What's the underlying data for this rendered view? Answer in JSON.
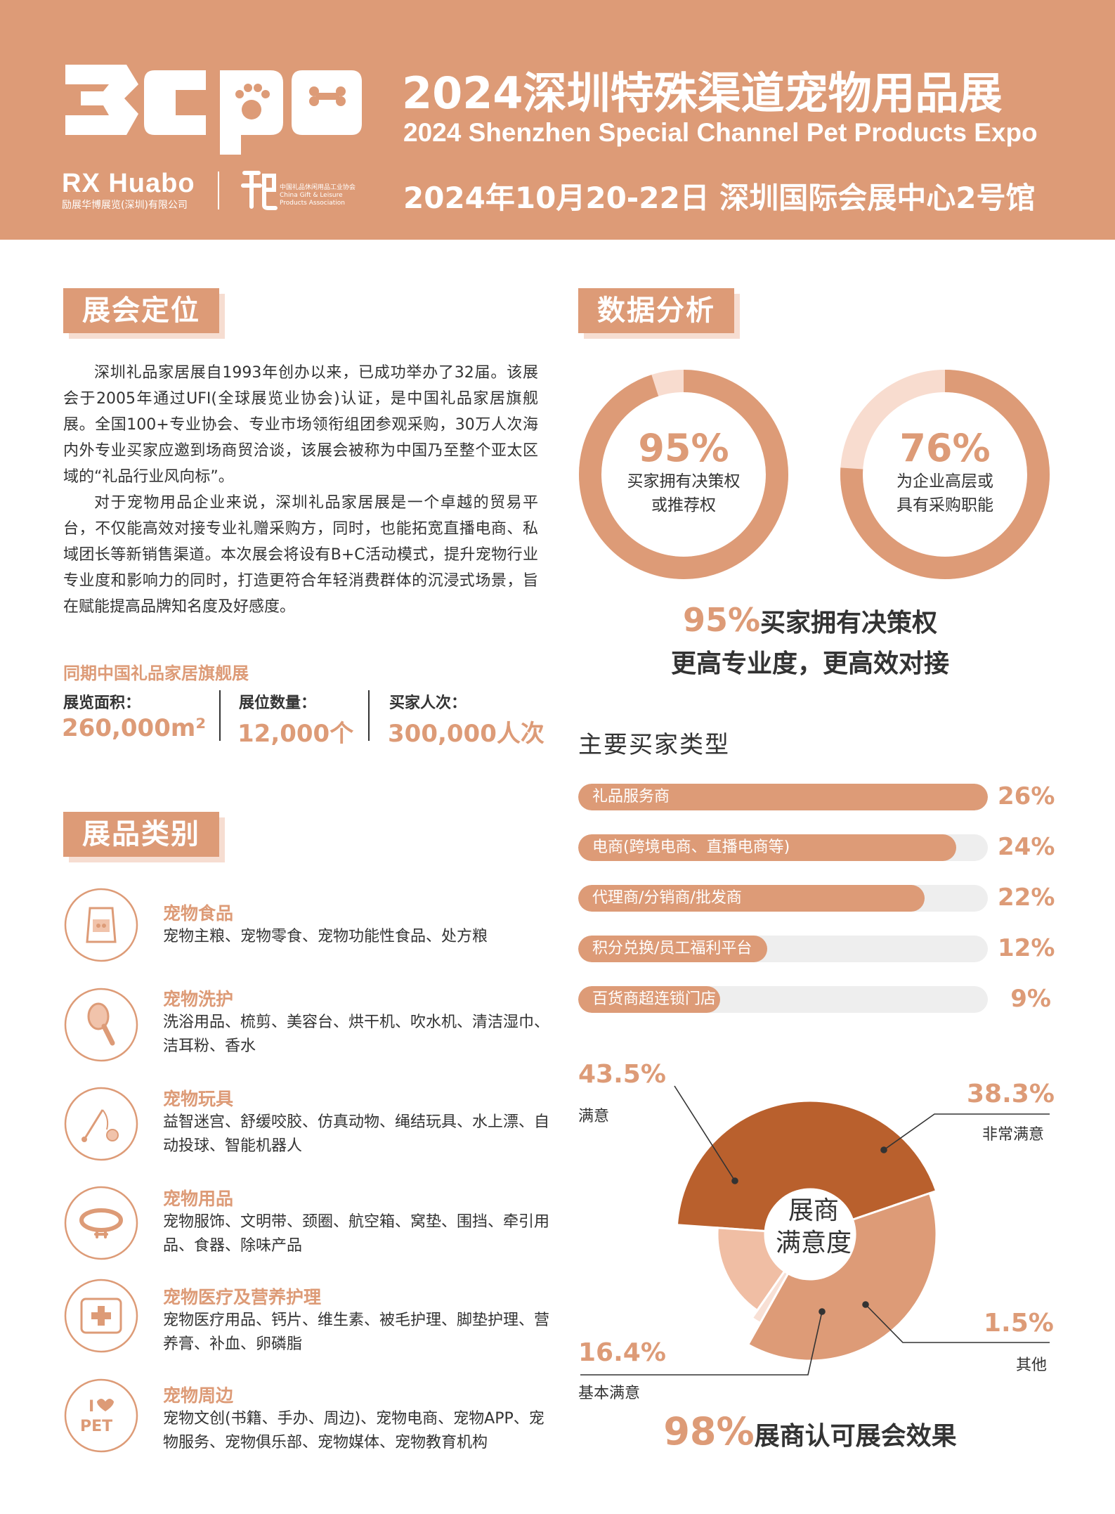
{
  "header": {
    "title": "2024深圳特殊渠道宠物用品展",
    "subtitle_en": "2024 Shenzhen Special Channel Pet Products Expo",
    "date_venue": "2024年10月20-22日 深圳国际会展中心2号馆",
    "organizer": "RX Huabo",
    "organizer_sub": "励展华博展览(深圳)有限公司",
    "association": "中国礼品休闲用品工业协会 China Gift & Leisure Products Association"
  },
  "positioning": {
    "section_title": "展会定位",
    "paragraph_1": "深圳礼品家居展自1993年创办以来，已成功举办了32届。该展会于2005年通过UFI(全球展览业协会)认证，是中国礼品家居旗舰展。全国100+专业协会、专业市场领衔组团参观采购，30万人次海内外专业买家应邀到场商贸洽谈，该展会被称为中国乃至整个亚太区域的“礼品行业风向标”。",
    "paragraph_2": "对于宠物用品企业来说，深圳礼品家居展是一个卓越的贸易平台，不仅能高效对接专业礼赠采购方，同时，也能拓宽直播电商、私域团长等新销售渠道。本次展会将设有B+C活动模式，提升宠物行业专业度和影响力的同时，打造更符合年轻消费群体的沉浸式场景，旨在赋能提高品牌知名度及好感度。",
    "sync_title": "同期中国礼品家居旗舰展",
    "stats": [
      {
        "label": "展览面积：",
        "value": "260,000m²"
      },
      {
        "label": "展位数量：",
        "value": "12,000个"
      },
      {
        "label": "买家人次：",
        "value": "300,000人次"
      }
    ]
  },
  "categories": {
    "section_title": "展品类别",
    "items": [
      {
        "title": "宠物食品",
        "desc": "宠物主粮、宠物零食、宠物功能性食品、处方粮",
        "icon": "pet-food-bag-icon"
      },
      {
        "title": "宠物洗护",
        "desc": "洗浴用品、梳剪、美容台、烘干机、吹水机、清洁湿巾、洁耳粉、香水",
        "icon": "grooming-brush-icon"
      },
      {
        "title": "宠物玩具",
        "desc": "益智迷宫、舒缓咬胶、仿真动物、绳结玩具、水上漂、自动投球、智能机器人",
        "icon": "cat-teaser-toy-icon"
      },
      {
        "title": "宠物用品",
        "desc": "宠物服饰、文明带、颈圈、航空箱、窝垫、围挡、牵引用品、食器、除味产品",
        "icon": "pet-collar-icon"
      },
      {
        "title": "宠物医疗及营养护理",
        "desc": "宠物医疗用品、钙片、维生素、被毛护理、脚垫护理、营养膏、补血、卵磷脂",
        "icon": "medical-cross-icon"
      },
      {
        "title": "宠物周边",
        "desc": "宠物文创(书籍、手办、周边)、宠物电商、宠物APP、宠物服务、宠物俱乐部、宠物媒体、宠物教育机构",
        "icon": "i-love-pet-icon"
      }
    ]
  },
  "analysis": {
    "section_title": "数据分析",
    "donuts": [
      {
        "pct": "95%",
        "value": 95,
        "line1": "买家拥有决策权",
        "line2": "或推荐权"
      },
      {
        "pct": "76%",
        "value": 76,
        "line1": "为企业高层或",
        "line2": "具有采购职能"
      }
    ],
    "claim_pct": "95%",
    "claim_text": "买家拥有决策权",
    "claim_line2": "更高专业度，更高效对接",
    "buyers_title": "主要买家类型",
    "satisfaction_center_1": "展商",
    "satisfaction_center_2": "满意度",
    "bottom_pct": "98%",
    "bottom_text": "展商认可展会效果"
  },
  "chart_data": [
    {
      "type": "bar",
      "title": "主要买家类型",
      "categories": [
        "礼品服务商",
        "电商(跨境电商、直播电商等)",
        "代理商/分销商/批发商",
        "积分兑换/员工福利平台",
        "百货商超连锁门店"
      ],
      "values": [
        26,
        24,
        22,
        12,
        9
      ],
      "value_labels": [
        "26%",
        "24%",
        "22%",
        "12%",
        "9%"
      ],
      "xlim": [
        0,
        26
      ],
      "orientation": "horizontal"
    },
    {
      "type": "pie",
      "title": "展商满意度",
      "categories": [
        "满意",
        "非常满意",
        "其他",
        "基本满意"
      ],
      "values": [
        43.5,
        38.3,
        1.5,
        16.4
      ],
      "value_labels": [
        "43.5%",
        "38.3%",
        "1.5%",
        "16.4%"
      ],
      "colors": [
        "#b9602d",
        "#dd9b77",
        "#f8e0d5",
        "#f0bea4"
      ]
    }
  ],
  "colors": {
    "accent": "#dd9b77",
    "accent_dark": "#b9602d",
    "accent_light": "#f8dccf",
    "track": "#eeeeee"
  }
}
